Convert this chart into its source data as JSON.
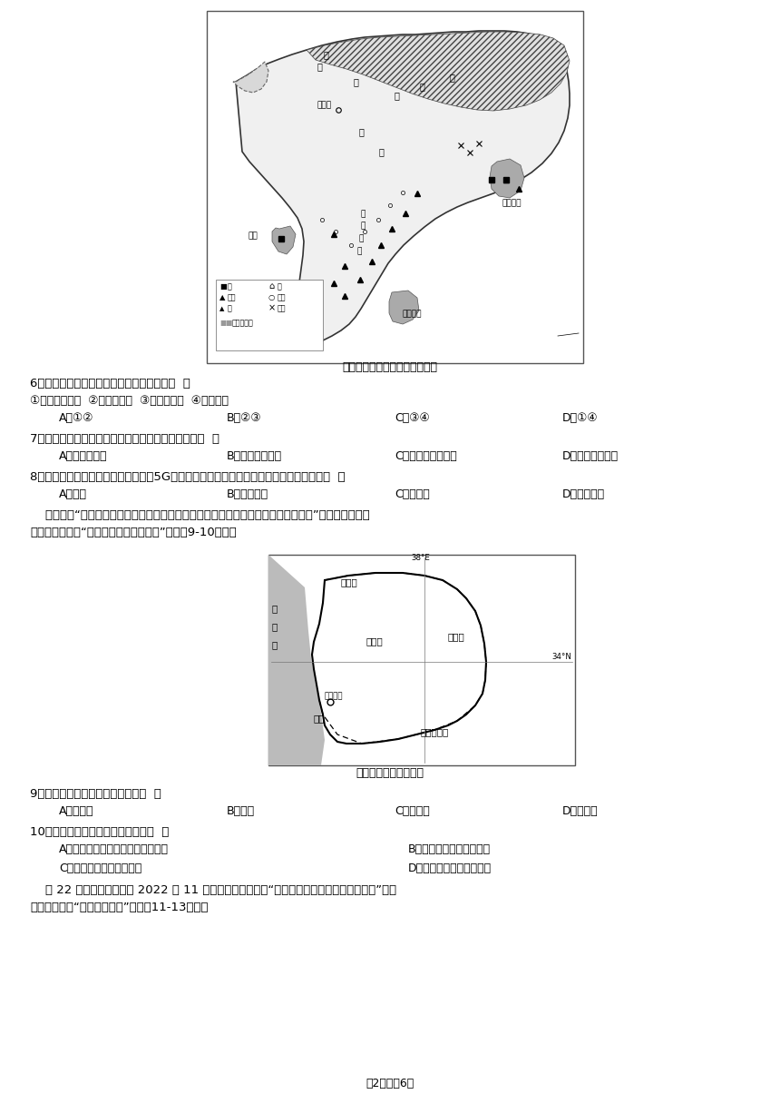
{
  "page_bg": "#ffffff",
  "title_map1": "印度矿产、农作物及工业分布图",
  "title_map2": "叙利亚地理位置示意图",
  "page_footer": "第2页，共6页",
  "questions": [
    {
      "num": "6",
      "text": "据图分析，加尔各答的主要工业部门有（  ）",
      "sub": "①航空航天工业  ②棉纺织工业  ③麻纺织工业  ④锤铁工业",
      "options": [
        "A．①②",
        "B．②③",
        "C．③④",
        "D．①④"
      ]
    },
    {
      "num": "7",
      "text": "与加尔各答相比，孟买发展棉纺织工业的优势是（  ）",
      "sub": "",
      "options": [
        "A．滨临印度洋",
        "B．靠近棉花产地",
        "C．劳动力资源丰富",
        "D．高等院校众多"
      ]
    },
    {
      "num": "8",
      "text": "印度的软件产业独树一帜，为发展5G产业提供了条件。图中软件产业最发达的城市是（  ）",
      "sub": "",
      "options": [
        "A．孟买",
        "B．加尔各答",
        "C．新德里",
        "D．班加罗尔"
      ]
    }
  ],
  "para1_line1": "    有人说：“我们并非生活在一个和平的世界，但庆幸的是我们生活在一个安全的国家”。叙利亚多年饣",
  "para1_line2": "受战争之苦。读“叙利亚地理位置示意图”，完戅9-10小题。",
  "questions2": [
    {
      "num": "9",
      "text": "从海陆位置来看，叙利亚属于（  ）",
      "sub": "",
      "options": [
        "A．临海国",
        "B．岛国",
        "C．内陆国",
        "D．群岛国"
      ]
    },
    {
      "num": "10",
      "text": "关于叙利亚的说法，错误的是（  ）",
      "sub": "",
      "options_2col": [
        [
          "A．位于亚洲西部，首都是大马士革",
          "B．叙利亚东与伊拉克接壤"
        ],
        [
          "C．西部沿海地区冬季多雨",
          "D．东南与沙特阿拉伯接壤"
        ]
      ]
    }
  ],
  "para2_line1": "    第 22 届世界杯足球赛于 2022 年 11 月在卡塔尔举行，读“卡塔尔地理位置图和气温降水图”以及",
  "para2_line2": "世界杯吉祥物“拉伊卜建模图”，完戕11-13小题。"
}
